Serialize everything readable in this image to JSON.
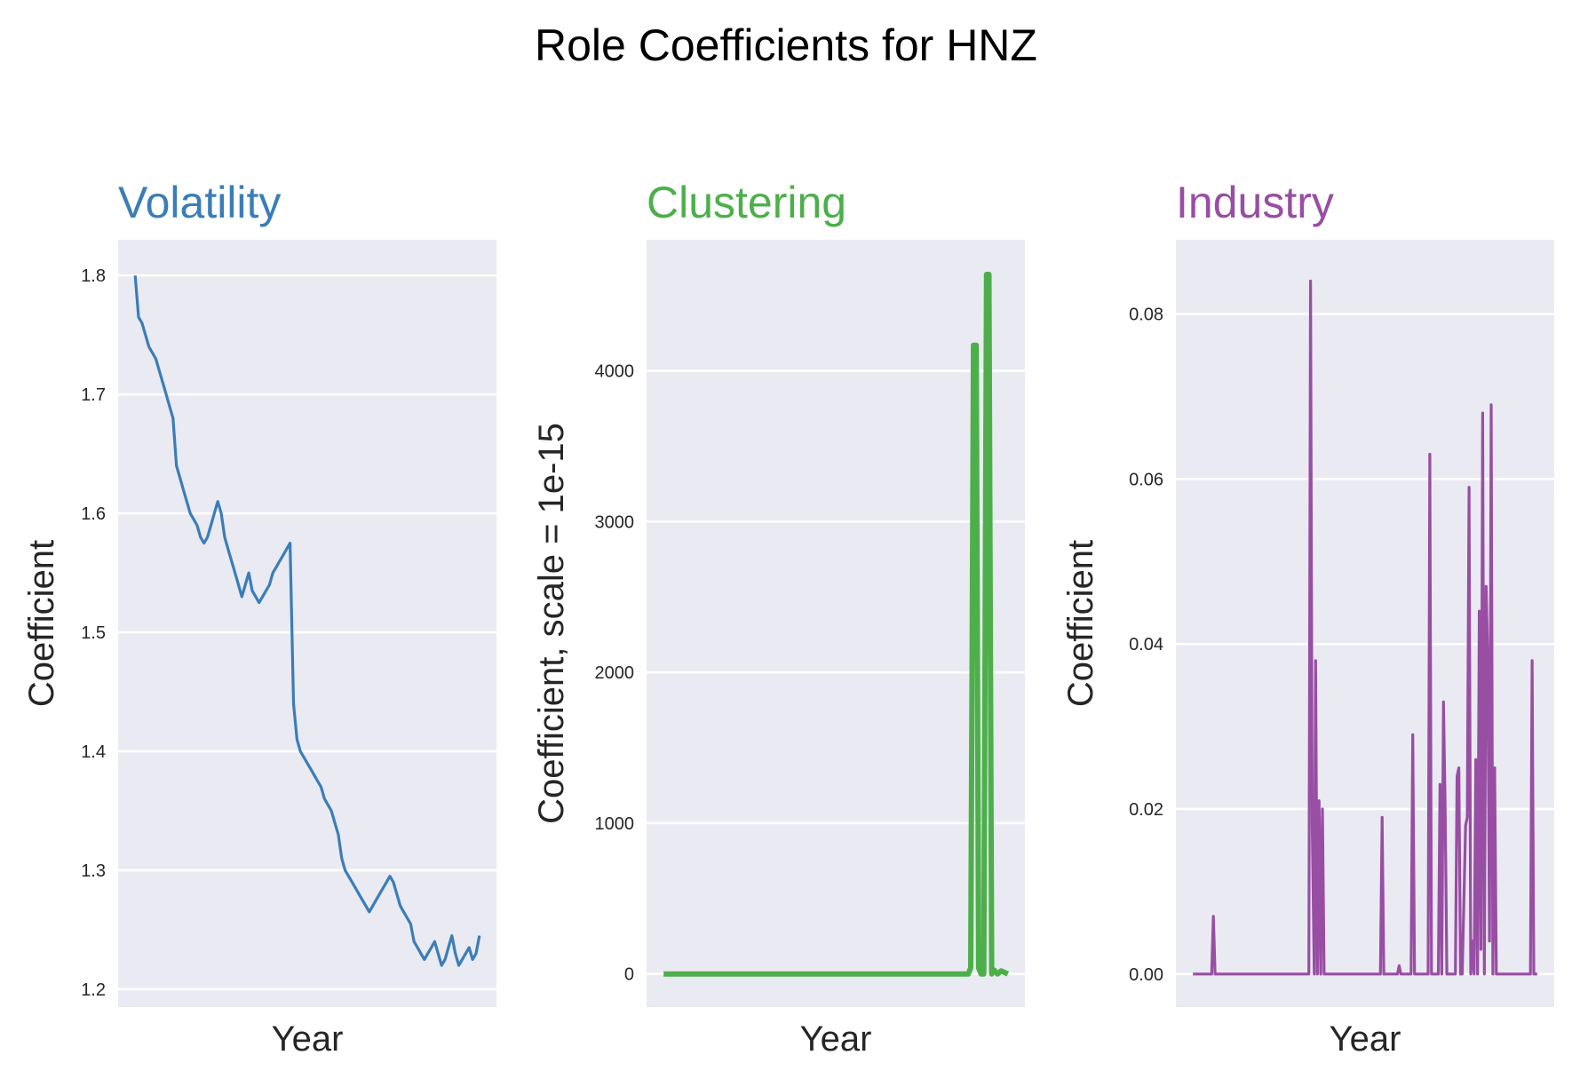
{
  "figure": {
    "title": "Role Coefficients for HNZ"
  },
  "chart_data": [
    {
      "type": "line",
      "title": "Volatility",
      "color": "#3A7DB8",
      "xlabel": "Year",
      "ylabel": "Coefficient",
      "ylim": [
        1.185,
        1.83
      ],
      "yticks": [
        1.2,
        1.3,
        1.4,
        1.5,
        1.6,
        1.7,
        1.8
      ],
      "ytick_labels": [
        "1.2",
        "1.3",
        "1.4",
        "1.5",
        "1.6",
        "1.7",
        "1.8"
      ],
      "grid": true,
      "x_tick_labels_shown": false,
      "series": [
        {
          "x": [
            0,
            1,
            2,
            3,
            4,
            5,
            6,
            7,
            8,
            9,
            10,
            11,
            12,
            13,
            14,
            15,
            16,
            17,
            18,
            19,
            20,
            21,
            22,
            23,
            24,
            25,
            26,
            27,
            28,
            29,
            30,
            31,
            32,
            33,
            34,
            35,
            36,
            37,
            38,
            39,
            40,
            41,
            42,
            43,
            44,
            45,
            46,
            47,
            48,
            49,
            50,
            51,
            52,
            53,
            54,
            55,
            56,
            57,
            58,
            59,
            60,
            61,
            62,
            63,
            64,
            65,
            66,
            67,
            68,
            69,
            70,
            71,
            72,
            73,
            74,
            75,
            76,
            77,
            78,
            79,
            80,
            81,
            82,
            83,
            84,
            85,
            86,
            87,
            88,
            89,
            90,
            91,
            92,
            93,
            94,
            95,
            96,
            97,
            98,
            99,
            100
          ],
          "values": [
            1.8,
            1.765,
            1.76,
            1.75,
            1.74,
            1.735,
            1.73,
            1.72,
            1.71,
            1.7,
            1.69,
            1.68,
            1.64,
            1.63,
            1.62,
            1.61,
            1.6,
            1.595,
            1.59,
            1.58,
            1.575,
            1.58,
            1.59,
            1.6,
            1.61,
            1.6,
            1.58,
            1.57,
            1.56,
            1.55,
            1.54,
            1.53,
            1.54,
            1.55,
            1.535,
            1.53,
            1.525,
            1.53,
            1.535,
            1.54,
            1.55,
            1.555,
            1.56,
            1.565,
            1.57,
            1.575,
            1.44,
            1.41,
            1.4,
            1.395,
            1.39,
            1.385,
            1.38,
            1.375,
            1.37,
            1.36,
            1.355,
            1.35,
            1.34,
            1.33,
            1.31,
            1.3,
            1.295,
            1.29,
            1.285,
            1.28,
            1.275,
            1.27,
            1.265,
            1.27,
            1.275,
            1.28,
            1.285,
            1.29,
            1.295,
            1.29,
            1.28,
            1.27,
            1.265,
            1.26,
            1.255,
            1.24,
            1.235,
            1.23,
            1.225,
            1.23,
            1.235,
            1.24,
            1.23,
            1.22,
            1.225,
            1.235,
            1.245,
            1.23,
            1.22,
            1.225,
            1.23,
            1.235,
            1.225,
            1.23,
            1.245
          ]
        }
      ]
    },
    {
      "type": "line",
      "title": "Clustering",
      "color": "#4DAF4A",
      "xlabel": "Year",
      "ylabel": "Coefficient, scale = 1e-15",
      "ylim": [
        -220,
        4870
      ],
      "yticks": [
        0,
        1000,
        2000,
        3000,
        4000
      ],
      "ytick_labels": [
        "0",
        "1000",
        "2000",
        "3000",
        "4000"
      ],
      "grid": true,
      "x_tick_labels_shown": false,
      "series": [
        {
          "x": [
            0,
            48,
            88,
            88.5,
            89.2,
            90,
            90.8,
            91.5,
            92.2,
            93,
            93.8,
            94.5,
            95.3,
            96,
            97,
            98,
            99,
            100
          ],
          "values": [
            0,
            0,
            0,
            0,
            40,
            4170,
            4170,
            40,
            0,
            0,
            4640,
            4640,
            0,
            25,
            0,
            20,
            10,
            0
          ]
        }
      ]
    },
    {
      "type": "line",
      "title": "Industry",
      "color": "#984EA3",
      "xlabel": "Year",
      "ylabel": "Coefficient",
      "ylim": [
        -0.004,
        0.089
      ],
      "yticks": [
        0.0,
        0.02,
        0.04,
        0.06,
        0.08
      ],
      "ytick_labels": [
        "0.00",
        "0.02",
        "0.04",
        "0.06",
        "0.08"
      ],
      "grid": true,
      "x_tick_labels_shown": false,
      "series": [
        {
          "x": [
            0,
            5.5,
            6,
            6.5,
            34,
            34.5,
            35,
            35.6,
            36,
            36.5,
            37,
            37.5,
            38,
            38.5,
            39,
            55,
            55.5,
            56,
            60,
            60.5,
            61,
            64,
            64.5,
            65,
            69,
            69.5,
            70,
            72,
            72.5,
            73,
            73.5,
            74,
            74.5,
            77,
            77.5,
            78,
            78.5,
            79,
            80,
            80.5,
            81,
            81.5,
            82,
            82.5,
            83,
            83.5,
            84,
            84.5,
            85,
            85.5,
            86,
            86.5,
            87,
            87.5,
            88,
            88.5,
            89,
            89.5,
            90,
            90.5,
            91,
            99,
            99.5,
            100,
            101
          ],
          "values": [
            0,
            0,
            0.007,
            0,
            0,
            0.084,
            0.018,
            0,
            0.038,
            0,
            0.021,
            0,
            0.02,
            0,
            0,
            0,
            0.019,
            0,
            0,
            0.001,
            0,
            0,
            0.029,
            0,
            0,
            0.063,
            0,
            0,
            0.023,
            0,
            0.033,
            0.02,
            0,
            0,
            0.024,
            0.025,
            0,
            0,
            0.018,
            0.019,
            0.059,
            0,
            0.004,
            0,
            0.026,
            0,
            0.044,
            0.003,
            0.068,
            0,
            0.047,
            0.038,
            0.004,
            0.069,
            0,
            0.025,
            0,
            0,
            0,
            0,
            0,
            0,
            0.038,
            0,
            0
          ]
        }
      ]
    }
  ]
}
